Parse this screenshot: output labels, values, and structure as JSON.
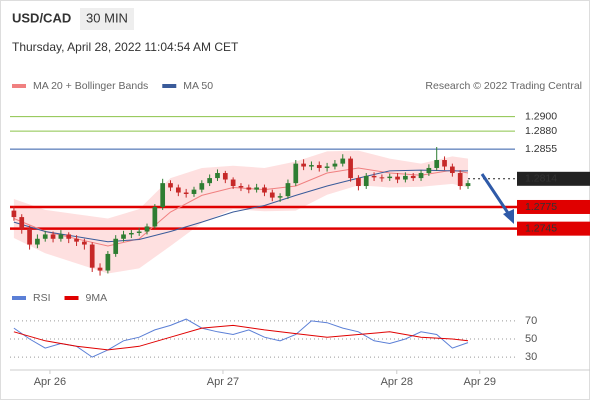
{
  "chart_data": [
    {
      "type": "candlestick",
      "title": "USD/CAD",
      "timeframe": "30 MIN",
      "subtitle": "Thursday, April 28, 2022 11:04:54 AM CET",
      "source": "Research © 2022 Trading Central",
      "up_color": "#2e7d32",
      "down_color": "#c62828",
      "xlim": [
        -0.5,
        64
      ],
      "ylim": [
        1.2667,
        1.293
      ],
      "xticks": [
        {
          "value": 4.6,
          "label": "Apr 26"
        },
        {
          "value": 26.7,
          "label": "Apr 27"
        },
        {
          "value": 48.9,
          "label": "Apr 28"
        },
        {
          "value": 59.5,
          "label": "Apr 29"
        }
      ],
      "open": [
        1.277,
        1.2761,
        1.2745,
        1.2723,
        1.2731,
        1.2737,
        1.2731,
        1.2737,
        1.2731,
        1.2727,
        1.2723,
        1.2691,
        1.2687,
        1.271,
        1.2731,
        1.2737,
        1.2739,
        1.2741,
        1.2748,
        1.2775,
        1.2808,
        1.2802,
        1.2795,
        1.2793,
        1.2799,
        1.2808,
        1.2815,
        1.2822,
        1.2813,
        1.2804,
        1.2802,
        1.2799,
        1.2802,
        1.2795,
        1.2788,
        1.279,
        1.2808,
        1.2835,
        1.2831,
        1.2833,
        1.2829,
        1.2831,
        1.2835,
        1.2842,
        1.2815,
        1.2804,
        1.2818,
        1.2816,
        1.2815,
        1.2817,
        1.2813,
        1.2818,
        1.2815,
        1.2822,
        1.2829,
        1.284,
        1.2831,
        1.2822,
        1.2804
      ],
      "high": [
        1.2776,
        1.2765,
        1.2749,
        1.2737,
        1.2742,
        1.2741,
        1.2743,
        1.274,
        1.2736,
        1.2731,
        1.2726,
        1.2697,
        1.2714,
        1.2736,
        1.2742,
        1.2743,
        1.2746,
        1.2752,
        1.2779,
        1.2814,
        1.2812,
        1.2806,
        1.28,
        1.2803,
        1.2812,
        1.282,
        1.2827,
        1.2825,
        1.2816,
        1.2808,
        1.2806,
        1.2807,
        1.2806,
        1.2799,
        1.2794,
        1.2813,
        1.284,
        1.2841,
        1.2838,
        1.2838,
        1.2836,
        1.284,
        1.2848,
        1.2845,
        1.2819,
        1.2822,
        1.2823,
        1.282,
        1.2821,
        1.2822,
        1.2823,
        1.2822,
        1.2826,
        1.2834,
        1.2858,
        1.2845,
        1.2835,
        1.2826,
        1.2812
      ],
      "low": [
        1.2756,
        1.2738,
        1.2716,
        1.2718,
        1.2727,
        1.2726,
        1.2727,
        1.2725,
        1.2721,
        1.2716,
        1.2685,
        1.268,
        1.2683,
        1.2706,
        1.2727,
        1.2732,
        1.2735,
        1.2737,
        1.2745,
        1.2771,
        1.2797,
        1.279,
        1.2788,
        1.2789,
        1.2795,
        1.2804,
        1.2811,
        1.2808,
        1.28,
        1.2797,
        1.2794,
        1.2795,
        1.279,
        1.2783,
        1.2782,
        1.2786,
        1.2804,
        1.2826,
        1.2826,
        1.2824,
        1.2824,
        1.2827,
        1.2831,
        1.281,
        1.2798,
        1.28,
        1.2811,
        1.281,
        1.2811,
        1.2808,
        1.2809,
        1.2811,
        1.2811,
        1.2818,
        1.2825,
        1.2826,
        1.2817,
        1.2799,
        1.28
      ],
      "close": [
        1.2761,
        1.2745,
        1.2723,
        1.2731,
        1.2737,
        1.2731,
        1.2737,
        1.2731,
        1.2727,
        1.2723,
        1.2691,
        1.2687,
        1.271,
        1.2731,
        1.2737,
        1.2739,
        1.2741,
        1.2748,
        1.2775,
        1.2808,
        1.2802,
        1.2795,
        1.2793,
        1.2799,
        1.2808,
        1.2815,
        1.2822,
        1.2813,
        1.2804,
        1.2802,
        1.2799,
        1.2802,
        1.2795,
        1.2788,
        1.279,
        1.2808,
        1.2835,
        1.2831,
        1.2833,
        1.2829,
        1.2831,
        1.2835,
        1.2842,
        1.2815,
        1.2804,
        1.2818,
        1.2816,
        1.2815,
        1.2817,
        1.2813,
        1.2818,
        1.2815,
        1.2822,
        1.2829,
        1.284,
        1.2831,
        1.2822,
        1.2804,
        1.2808
      ],
      "bollinger": {
        "color": "#fdd5d5",
        "x": [
          0,
          4,
          8,
          12,
          16,
          20,
          24,
          28,
          32,
          36,
          40,
          44,
          48,
          52,
          56,
          58
        ],
        "upper": [
          1.2786,
          1.2771,
          1.2765,
          1.2759,
          1.2772,
          1.2815,
          1.2829,
          1.2832,
          1.2829,
          1.2838,
          1.2852,
          1.2853,
          1.2842,
          1.2835,
          1.2845,
          1.2842
        ],
        "lower": [
          1.2732,
          1.2711,
          1.2697,
          1.2683,
          1.269,
          1.2721,
          1.2753,
          1.2772,
          1.2769,
          1.277,
          1.2792,
          1.2805,
          1.2802,
          1.2803,
          1.2807,
          1.2802
        ]
      },
      "series": [
        {
          "name": "MA 20 + Bollinger Bands",
          "color": "#f08080",
          "x": [
            0,
            4,
            8,
            12,
            16,
            20,
            24,
            28,
            32,
            36,
            40,
            44,
            48,
            52,
            56,
            58
          ],
          "values": [
            1.2759,
            1.2741,
            1.2731,
            1.2721,
            1.2731,
            1.2768,
            1.2791,
            1.2802,
            1.2799,
            1.2804,
            1.2822,
            1.2829,
            1.2822,
            1.2819,
            1.2826,
            1.2822
          ]
        },
        {
          "name": "MA 50",
          "color": "#3a5b9a",
          "x": [
            0,
            4,
            8,
            12,
            16,
            20,
            24,
            28,
            32,
            36,
            40,
            44,
            48,
            52,
            56,
            58
          ],
          "values": [
            1.2754,
            1.2741,
            1.2734,
            1.2727,
            1.273,
            1.2741,
            1.2754,
            1.2768,
            1.2777,
            1.2791,
            1.2804,
            1.2815,
            1.2825,
            1.2826,
            1.2825,
            1.2825
          ]
        }
      ],
      "levels": [
        {
          "value": 1.29,
          "label": "1.2900",
          "color": "#8bc34a"
        },
        {
          "value": 1.288,
          "label": "1.2880",
          "color": "#8bc34a"
        },
        {
          "value": 1.2855,
          "label": "1.2855",
          "color": "#2f5aa8"
        },
        {
          "value": 1.2814,
          "label": "1.2814",
          "color": "#222222",
          "dashed": true,
          "box": true
        },
        {
          "value": 1.2775,
          "label": "1.2775",
          "color": "#e00000",
          "box": true
        },
        {
          "value": 1.2745,
          "label": "1.2745",
          "color": "#e00000",
          "box": true
        }
      ]
    },
    {
      "type": "line",
      "xlim": [
        -0.5,
        64
      ],
      "ylim": [
        18,
        82
      ],
      "yticks": [
        30,
        50,
        70
      ],
      "grid": true,
      "series": [
        {
          "name": "RSI",
          "color": "#5b7fd6",
          "x": [
            0,
            2,
            4,
            6,
            8,
            10,
            12,
            14,
            16,
            18,
            20,
            22,
            24,
            26,
            28,
            30,
            32,
            34,
            36,
            38,
            40,
            42,
            44,
            46,
            48,
            50,
            52,
            54,
            56,
            58
          ],
          "values": [
            62,
            50,
            40,
            45,
            42,
            30,
            38,
            48,
            52,
            60,
            65,
            72,
            62,
            58,
            55,
            60,
            52,
            48,
            55,
            70,
            68,
            62,
            58,
            48,
            45,
            50,
            58,
            55,
            40,
            46
          ]
        },
        {
          "name": "9MA",
          "color": "#e00000",
          "x": [
            0,
            4,
            8,
            12,
            16,
            20,
            24,
            28,
            32,
            36,
            40,
            44,
            48,
            52,
            56,
            58
          ],
          "values": [
            58,
            48,
            42,
            38,
            42,
            52,
            62,
            65,
            60,
            56,
            52,
            55,
            58,
            52,
            50,
            48
          ]
        }
      ]
    }
  ]
}
